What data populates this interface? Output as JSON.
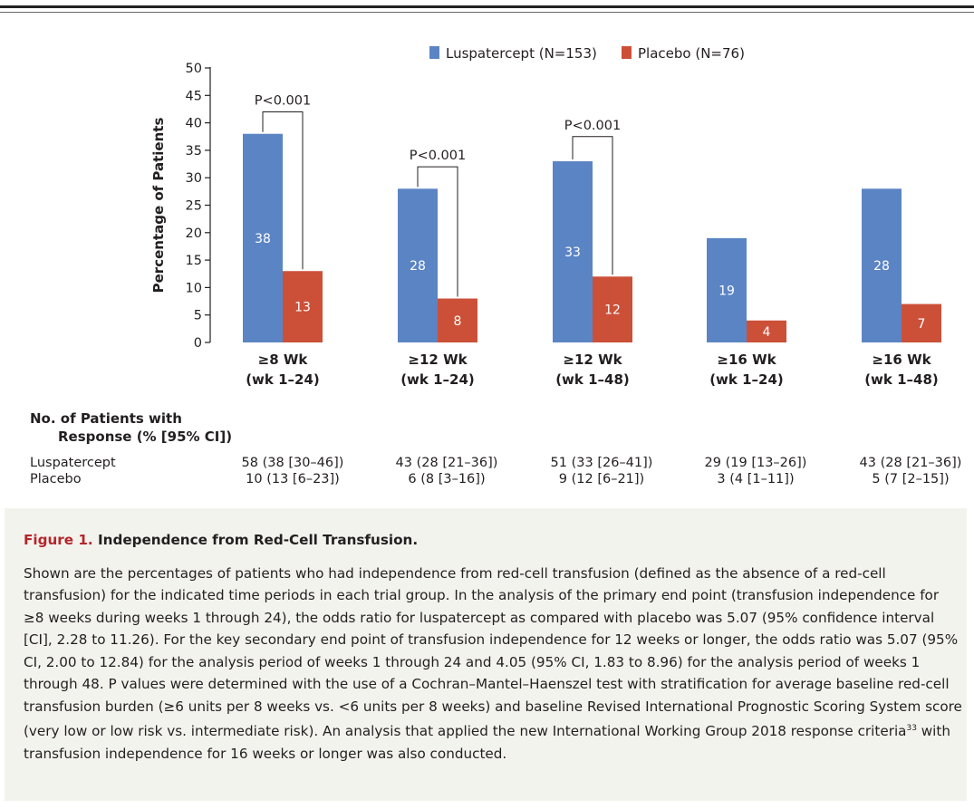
{
  "chart_data": {
    "type": "bar",
    "ylabel": "Percentage of Patients",
    "ylim": [
      0,
      50
    ],
    "yticks": [
      0,
      5,
      10,
      15,
      20,
      25,
      30,
      35,
      40,
      45,
      50
    ],
    "grid": false,
    "legend_position": "top-center",
    "categories": [
      {
        "line1": "≥8 Wk",
        "line2": "(wk 1–24)"
      },
      {
        "line1": "≥12 Wk",
        "line2": "(wk 1–24)"
      },
      {
        "line1": "≥12 Wk",
        "line2": "(wk 1–48)"
      },
      {
        "line1": "≥16 Wk",
        "line2": "(wk 1–24)"
      },
      {
        "line1": "≥16 Wk",
        "line2": "(wk 1–48)"
      }
    ],
    "series": [
      {
        "name": "Luspatercept (N=153)",
        "color": "#5b84c4",
        "values": [
          38,
          28,
          33,
          19,
          28
        ]
      },
      {
        "name": "Placebo (N=76)",
        "color": "#cc5038",
        "values": [
          13,
          8,
          12,
          4,
          7
        ]
      }
    ],
    "annotations": [
      {
        "category_index": 0,
        "text": "P<0.001",
        "bracket_top": 42
      },
      {
        "category_index": 1,
        "text": "P<0.001",
        "bracket_top": 32
      },
      {
        "category_index": 2,
        "text": "P<0.001",
        "bracket_top": 37.5
      }
    ]
  },
  "response_table": {
    "heading_line1": "No. of Patients with",
    "heading_line2": "Response (% [95% CI])",
    "rows": [
      {
        "label": "Luspatercept",
        "cells": [
          "58 (38 [30–46])",
          "43 (28 [21–36])",
          "51 (33 [26–41])",
          "29 (19 [13–26])",
          "43 (28 [21–36])"
        ]
      },
      {
        "label": "Placebo",
        "cells": [
          "10 (13 [6–23])",
          "6 (8 [3–16])",
          "9 (12 [6–21])",
          "3 (4 [1–11])",
          "5 (7 [2–15])"
        ]
      }
    ]
  },
  "caption": {
    "figure_label": "Figure 1.",
    "title": "Independence from Red-Cell Transfusion.",
    "text_before_ref": "Shown are the percentages of patients who had independence from red-cell transfusion (defined as the absence of a red-cell transfusion) for the indicated time periods in each trial group. In the analysis of the primary end point (transfusion independence for ≥8 weeks during weeks 1 through 24), the odds ratio for luspatercept as compared with placebo was 5.07 (95% confidence interval [CI], 2.28 to 11.26). For the key secondary end point of transfusion independence for 12 weeks or longer, the odds ratio was 5.07 (95% CI, 2.00 to 12.84) for the analysis period of weeks 1 through 24 and 4.05 (95% CI, 1.83 to 8.96) for the analysis period of weeks 1 through 48. P values were determined with the use of a Cochran–Mantel–Haenszel test with stratification for average baseline red-cell transfusion burden (≥6 units per 8 weeks vs. <6 units per 8 weeks) and baseline Revised International Prognostic Scoring System score (very low or low risk vs. intermediate risk). An analysis that applied the new International Working Group 2018 response criteria",
    "ref_superscript": "33",
    "text_after_ref": " with transfusion independence for 16 weeks or longer was also conducted."
  }
}
